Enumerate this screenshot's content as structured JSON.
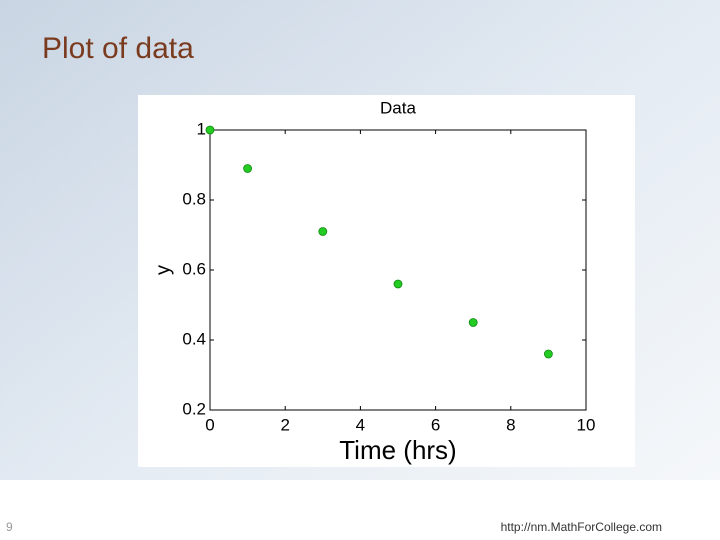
{
  "slide": {
    "title": "Plot of data",
    "page_number": 9,
    "footer": "http://nm.MathForCollege.com"
  },
  "chart_data": {
    "type": "scatter",
    "title": "Data",
    "x_label": "Time (hrs)",
    "y_label": "y",
    "x": [
      0,
      1,
      3,
      5,
      7,
      9
    ],
    "values": [
      1,
      0.89,
      0.71,
      0.56,
      0.45,
      0.36
    ],
    "color": "#22cc22",
    "xlim": [
      0,
      10
    ],
    "ylim": [
      0.2,
      1
    ],
    "xticks": [
      0,
      2,
      4,
      6,
      8,
      10
    ],
    "yticks": [
      0.2,
      0.4,
      0.6,
      0.8,
      1
    ]
  }
}
